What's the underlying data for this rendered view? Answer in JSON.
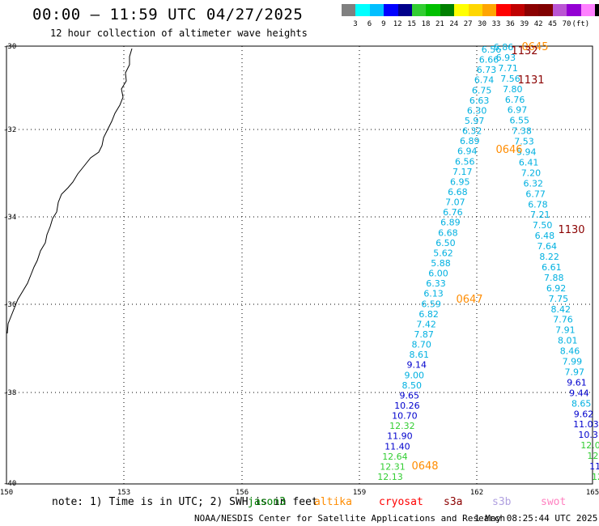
{
  "header": {
    "title": "00:00 – 11:59 UTC 04/27/2025",
    "subtitle": "12 hour collection of altimeter wave heights"
  },
  "colorbar": {
    "colors": [
      "#808080",
      "#00ffff",
      "#00bfff",
      "#0000ff",
      "#00008b",
      "#32cd32",
      "#00c000",
      "#008000",
      "#ffff00",
      "#ffd700",
      "#ffa500",
      "#ff0000",
      "#c00000",
      "#8b0000",
      "#800000",
      "#ba55d3",
      "#9400d3",
      "#ff80ff",
      "#000000"
    ],
    "labels": [
      "3",
      "6",
      "9",
      "12",
      "15",
      "18",
      "21",
      "24",
      "27",
      "30",
      "33",
      "36",
      "39",
      "42",
      "45",
      "70",
      "(ft)"
    ]
  },
  "map": {
    "lat_labels": [
      "-30",
      "-32",
      "-34",
      "-36",
      "-38",
      "-40"
    ],
    "lon_labels": [
      "150",
      "153",
      "156",
      "159",
      "162",
      "165"
    ],
    "pass_left": {
      "color": "#00bfe6",
      "values": [
        "6.56",
        "6.66",
        "6.73",
        "6.74",
        "6.75",
        "6.63",
        "6.30",
        "5.97",
        "6.32",
        "6.89",
        "6.94",
        "6.56",
        "7.17",
        "6.95",
        "6.68",
        "7.07",
        "6.76",
        "6.89",
        "6.68",
        "6.50",
        "5.62",
        "5.88",
        "6.00",
        "6.33",
        "6.13",
        "6.59",
        "6.82",
        "7.42",
        "7.87",
        "8.70",
        "8.61",
        "9.14",
        "9.00",
        "8.50",
        "9.65",
        "10.26",
        "10.70",
        "12.32",
        "11.90",
        "11.40",
        "12.64",
        "12.31",
        "12.13"
      ],
      "colors": [
        "c",
        "c",
        "c",
        "c",
        "c",
        "c",
        "c",
        "c",
        "c",
        "c",
        "c",
        "c",
        "c",
        "c",
        "c",
        "c",
        "c",
        "c",
        "c",
        "c",
        "c",
        "c",
        "c",
        "c",
        "c",
        "c",
        "c",
        "c",
        "c",
        "c",
        "c",
        "b",
        "c",
        "c",
        "b",
        "b",
        "b",
        "g",
        "b",
        "b",
        "g",
        "g",
        "g"
      ]
    },
    "pass_right": {
      "values": [
        "6.86",
        "6.93",
        "7.71",
        "7.56",
        "7.80",
        "6.76",
        "6.97",
        "6.55",
        "7.38",
        "7.53",
        "5.94",
        "6.41",
        "7.20",
        "6.32",
        "6.77",
        "6.78",
        "7.21",
        "7.50",
        "6.48",
        "7.64",
        "8.22",
        "6.61",
        "7.88",
        "6.92",
        "7.75",
        "8.42",
        "7.76",
        "7.91",
        "8.01",
        "8.46",
        "7.99",
        "7.97",
        "9.61",
        "9.44",
        "8.65",
        "9.62",
        "11.03",
        "10.3",
        "12.0",
        "12",
        "11",
        "12"
      ],
      "colors": [
        "c",
        "c",
        "c",
        "c",
        "c",
        "c",
        "c",
        "c",
        "c",
        "c",
        "c",
        "c",
        "c",
        "c",
        "c",
        "c",
        "c",
        "c",
        "c",
        "c",
        "c",
        "c",
        "c",
        "c",
        "c",
        "c",
        "c",
        "c",
        "c",
        "c",
        "c",
        "c",
        "b",
        "b",
        "c",
        "b",
        "b",
        "b",
        "g",
        "g",
        "b",
        "g"
      ]
    },
    "time_labels": [
      {
        "text": "0645",
        "color": "#ff8c00"
      },
      {
        "text": "1132",
        "color": "#8b0000"
      },
      {
        "text": "1131",
        "color": "#8b0000"
      },
      {
        "text": "0646",
        "color": "#ff8c00"
      },
      {
        "text": "1130",
        "color": "#8b0000"
      },
      {
        "text": "0647",
        "color": "#ff8c00"
      },
      {
        "text": "0648",
        "color": "#ff8c00"
      }
    ]
  },
  "footer": {
    "note": "note: 1) Time is in UTC; 2) SWH is in feet",
    "satellites": [
      {
        "name": "jason3",
        "color": "#008000"
      },
      {
        "name": "altika",
        "color": "#ff8c00"
      },
      {
        "name": "cryosat",
        "color": "#ff0000"
      },
      {
        "name": "s3a",
        "color": "#8b0000"
      },
      {
        "name": "s3b",
        "color": "#b0a0e0"
      },
      {
        "name": "swot",
        "color": "#ff80c0"
      }
    ],
    "credit": "NOAA/NESDIS Center for Satellite Applications and Research",
    "date": "1 May 08:25:44 UTC 2025"
  }
}
